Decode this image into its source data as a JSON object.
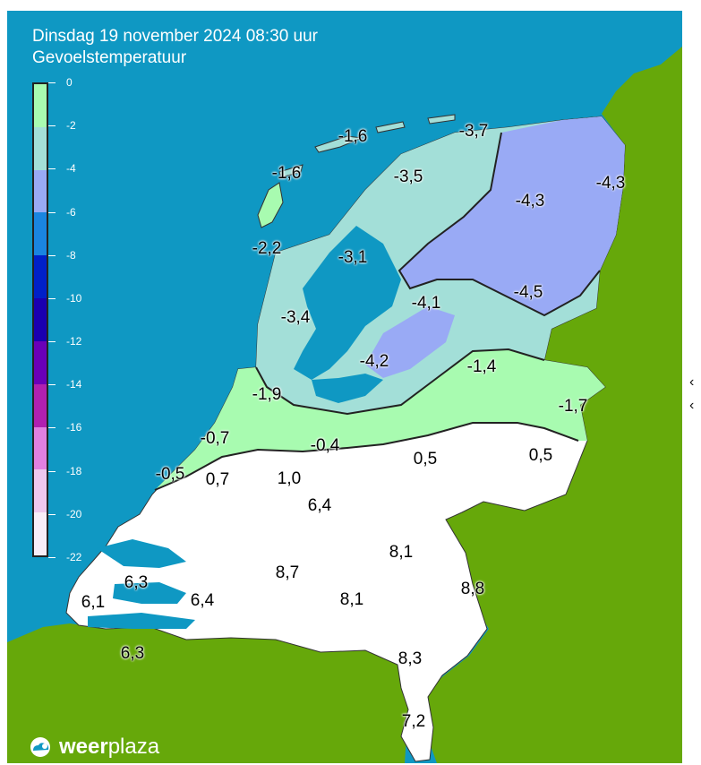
{
  "header": {
    "title": "Dinsdag 19 november 2024 08:30 uur",
    "subtitle": "Gevoelstemperatuur"
  },
  "legend": {
    "labels": [
      "0",
      "-2",
      "-4",
      "-6",
      "-8",
      "-10",
      "-12",
      "-14",
      "-16",
      "-18",
      "-20",
      "-22"
    ],
    "colors": [
      "#a8fbb0",
      "#a3dfd8",
      "#99aaf5",
      "#1a85e0",
      "#0020c8",
      "#1a00b0",
      "#6a00b8",
      "#b020b0",
      "#e080e0",
      "#eec8ee",
      "#f8eef8"
    ]
  },
  "map": {
    "colors": {
      "sea": "#0f98c3",
      "land_abroad": "#66a80a",
      "above_zero": "#ffffff",
      "band_0_to_-2": "#a8fbb0",
      "band_-2_to_-4": "#a3dfd8",
      "band_-4_to_-6": "#99aaf5",
      "borders": "#333333"
    },
    "values": [
      {
        "name": "value-ameland",
        "text": "-1,6"
      },
      {
        "name": "value-schiermonnikoog",
        "text": "-3,7"
      },
      {
        "name": "value-vlieland",
        "text": "-1,6"
      },
      {
        "name": "value-friesland",
        "text": "-3,5"
      },
      {
        "name": "value-groningen",
        "text": "-4,3"
      },
      {
        "name": "value-delfzijl",
        "text": "-4,3"
      },
      {
        "name": "value-den-helder",
        "text": "-2,2"
      },
      {
        "name": "value-ijsselmeer",
        "text": "-3,1"
      },
      {
        "name": "value-noordoostpolder",
        "text": "-4,1"
      },
      {
        "name": "value-drenthe",
        "text": "-4,5"
      },
      {
        "name": "value-noord-holland",
        "text": "-3,4"
      },
      {
        "name": "value-flevoland",
        "text": "-4,2"
      },
      {
        "name": "value-gelderland-north",
        "text": "-1,4"
      },
      {
        "name": "value-amsterdam",
        "text": "-1,9"
      },
      {
        "name": "value-twente",
        "text": "-1,7"
      },
      {
        "name": "value-leiden",
        "text": "-0,7"
      },
      {
        "name": "value-utrecht",
        "text": "-0,4"
      },
      {
        "name": "value-hoek-van-holland",
        "text": "-0,5"
      },
      {
        "name": "value-rotterdam",
        "text": "0,7"
      },
      {
        "name": "value-dordrecht",
        "text": "1,0"
      },
      {
        "name": "value-betuwe",
        "text": "0,5"
      },
      {
        "name": "value-achterhoek",
        "text": "0,5"
      },
      {
        "name": "value-gorinchem",
        "text": "6,4"
      },
      {
        "name": "value-nijmegen",
        "text": "8,1"
      },
      {
        "name": "value-goeree",
        "text": "6,3"
      },
      {
        "name": "value-breda",
        "text": "8,7"
      },
      {
        "name": "value-venlo",
        "text": "8,8"
      },
      {
        "name": "value-walcheren",
        "text": "6,1"
      },
      {
        "name": "value-bergen-op-zoom",
        "text": "6,4"
      },
      {
        "name": "value-eindhoven",
        "text": "8,1"
      },
      {
        "name": "value-zeeuws-vlaanderen",
        "text": "6,3"
      },
      {
        "name": "value-roermond",
        "text": "8,3"
      },
      {
        "name": "value-maastricht",
        "text": "7,2"
      }
    ]
  },
  "logo": {
    "part1": "weer",
    "part2": "plaza"
  }
}
